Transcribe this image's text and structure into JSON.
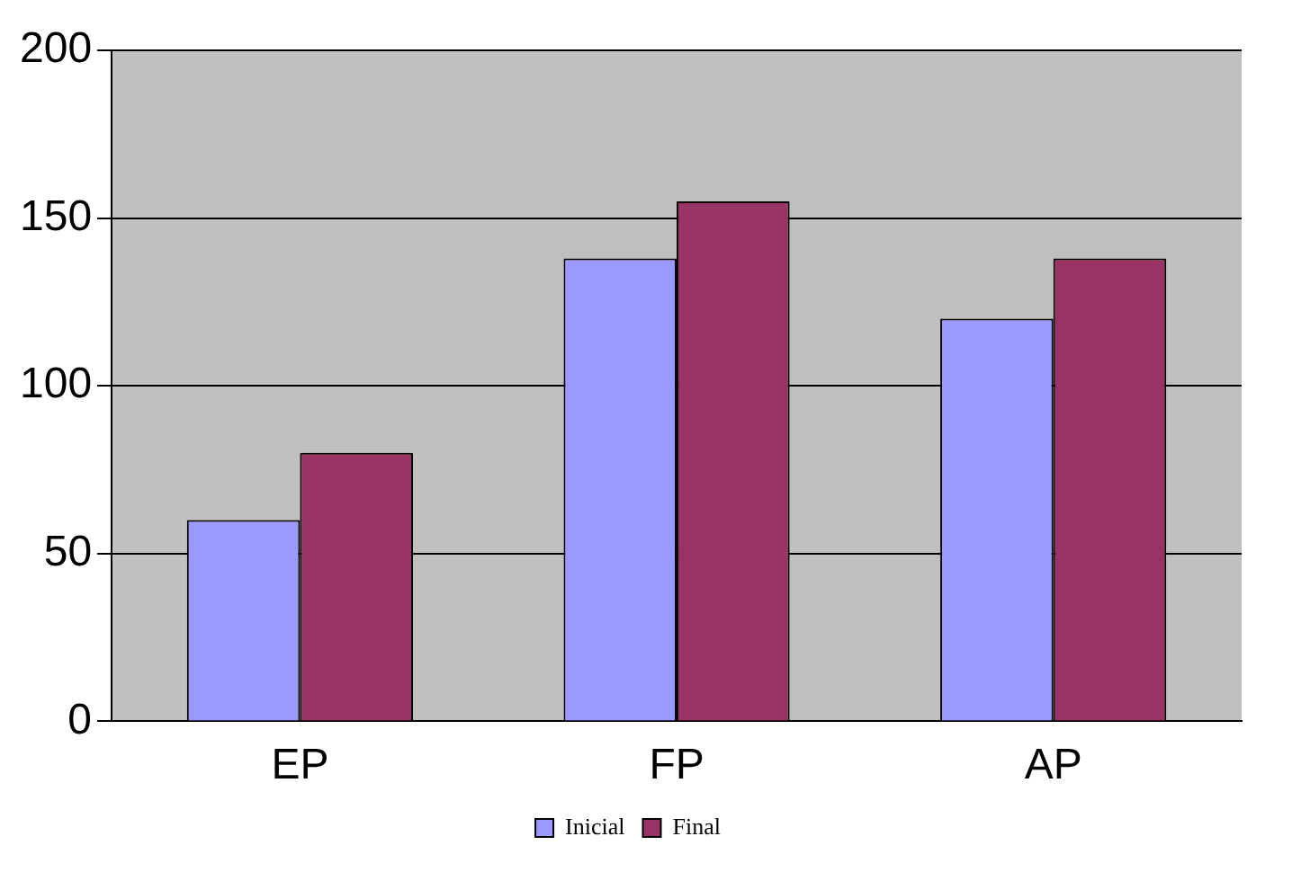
{
  "chart_data": {
    "type": "bar",
    "categories": [
      "EP",
      "FP",
      "AP"
    ],
    "series": [
      {
        "name": "Inicial",
        "color": "#9999ff",
        "values": [
          60,
          138,
          120
        ]
      },
      {
        "name": "Final",
        "color": "#993366",
        "values": [
          80,
          155,
          138
        ]
      }
    ],
    "ylim": [
      0,
      200
    ],
    "yticks": [
      0,
      50,
      100,
      150,
      200
    ],
    "grid": "y",
    "legend": "bottom"
  }
}
